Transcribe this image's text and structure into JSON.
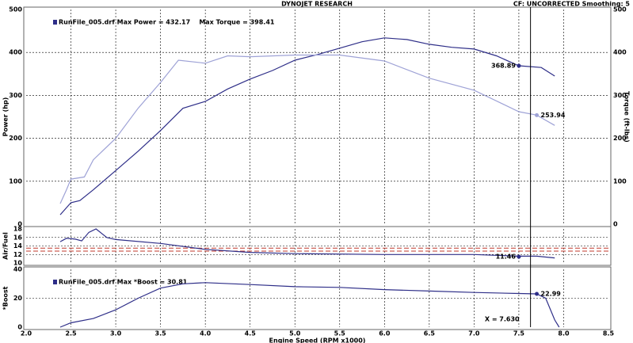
{
  "chart_data": [
    {
      "type": "line",
      "title": "DYNOJET RESEARCH",
      "subtitle": "CF: UNCORRECTED  Smoothing: 5",
      "legend_text": "RunFile_005.drf Max Power = 432.17    Max Torque = 398.41",
      "ylabel": "Power (hp)",
      "y2label": "Torque (ft-lbs)",
      "grid": true,
      "xlim": [
        2,
        8.5
      ],
      "ylim": [
        0,
        500
      ],
      "yticks": [
        0,
        100,
        200,
        300,
        400,
        500
      ],
      "y2lim": [
        0,
        500
      ],
      "y2ticks": [
        0,
        100,
        200,
        300,
        400,
        500
      ],
      "series": [
        {
          "name": "Power",
          "color": "#2e2e88",
          "x": [
            2.38,
            2.5,
            2.6,
            2.75,
            3.0,
            3.25,
            3.5,
            3.75,
            4.0,
            4.25,
            4.5,
            4.75,
            5.0,
            5.25,
            5.5,
            5.75,
            6.0,
            6.25,
            6.5,
            6.75,
            7.0,
            7.25,
            7.5,
            7.75,
            7.9
          ],
          "values": [
            22,
            50,
            55,
            80,
            125,
            170,
            218,
            270,
            286,
            315,
            338,
            358,
            382,
            395,
            410,
            425,
            434,
            430,
            419,
            412,
            408,
            392,
            369,
            365,
            345
          ],
          "marker": {
            "x": 7.5,
            "y": 368.89
          }
        },
        {
          "name": "Torque",
          "color": "#9ea2d6",
          "axis": "y2",
          "x": [
            2.38,
            2.45,
            2.5,
            2.65,
            2.75,
            3.0,
            3.25,
            3.5,
            3.7,
            4.0,
            4.25,
            4.5,
            5.0,
            5.5,
            6.0,
            6.5,
            7.0,
            7.5,
            7.7,
            7.9
          ],
          "values": [
            48,
            80,
            105,
            110,
            150,
            200,
            270,
            330,
            382,
            375,
            392,
            390,
            394,
            394,
            380,
            340,
            312,
            262,
            254,
            230
          ],
          "marker": {
            "x": 7.7,
            "y": 253.94
          }
        }
      ]
    },
    {
      "type": "line",
      "ylabel": "Air/Fuel",
      "grid": true,
      "xlim": [
        2,
        8.5
      ],
      "ylim": [
        10,
        18
      ],
      "yticks": [
        10,
        12,
        14,
        16,
        18
      ],
      "ref_lines": [
        {
          "value": 13.5,
          "color": "#c0392b"
        },
        {
          "value": 12.8,
          "color": "#c0392b"
        }
      ],
      "series": [
        {
          "name": "Air/Fuel",
          "color": "#2e2e88",
          "x": [
            2.38,
            2.45,
            2.55,
            2.62,
            2.7,
            2.78,
            2.9,
            3.0,
            3.5,
            4.0,
            4.5,
            5.0,
            6.0,
            7.0,
            7.5,
            7.7,
            7.9
          ],
          "values": [
            15.0,
            15.8,
            15.6,
            15.2,
            17.2,
            18.0,
            16.0,
            15.5,
            14.6,
            13.2,
            12.5,
            12.2,
            12.0,
            12.0,
            11.6,
            11.6,
            11.2
          ],
          "marker": {
            "x": 7.5,
            "y": 11.46
          }
        }
      ]
    },
    {
      "type": "line",
      "ylabel": "*Boost",
      "grid": true,
      "legend_text": "RunFile_005.drf Max *Boost = 30.81",
      "xlabel": "Engine Speed (RPM x1000)",
      "xlim": [
        2,
        8.5
      ],
      "ylim": [
        0,
        40
      ],
      "yticks": [
        0,
        20,
        40
      ],
      "xticks": [
        {
          "value": 2,
          "label": "2.0"
        },
        2.5,
        {
          "value": 3,
          "label": "3.0"
        },
        3.5,
        {
          "value": 4,
          "label": "4.0"
        },
        4.5,
        {
          "value": 5,
          "label": "5.0"
        },
        5.5,
        {
          "value": 6,
          "label": "6.0"
        },
        6.5,
        {
          "value": 7,
          "label": "7.0"
        },
        7.5,
        {
          "value": 8,
          "label": "8.0"
        },
        8.5
      ],
      "cursor": {
        "value": 7.63,
        "label": "X = 7.630"
      },
      "series": [
        {
          "name": "*Boost",
          "color": "#2e2e88",
          "x": [
            2.38,
            2.5,
            2.75,
            3.0,
            3.25,
            3.5,
            3.75,
            4.0,
            4.5,
            5.0,
            5.5,
            6.0,
            6.5,
            7.0,
            7.5,
            7.7,
            7.8,
            7.9,
            7.95
          ],
          "values": [
            0,
            3,
            6,
            12,
            20,
            27,
            30,
            30.8,
            29.5,
            28,
            27.5,
            26,
            25,
            24,
            23.3,
            23,
            20,
            5,
            0
          ],
          "marker": {
            "x": 7.7,
            "y": 22.99
          }
        }
      ]
    }
  ]
}
